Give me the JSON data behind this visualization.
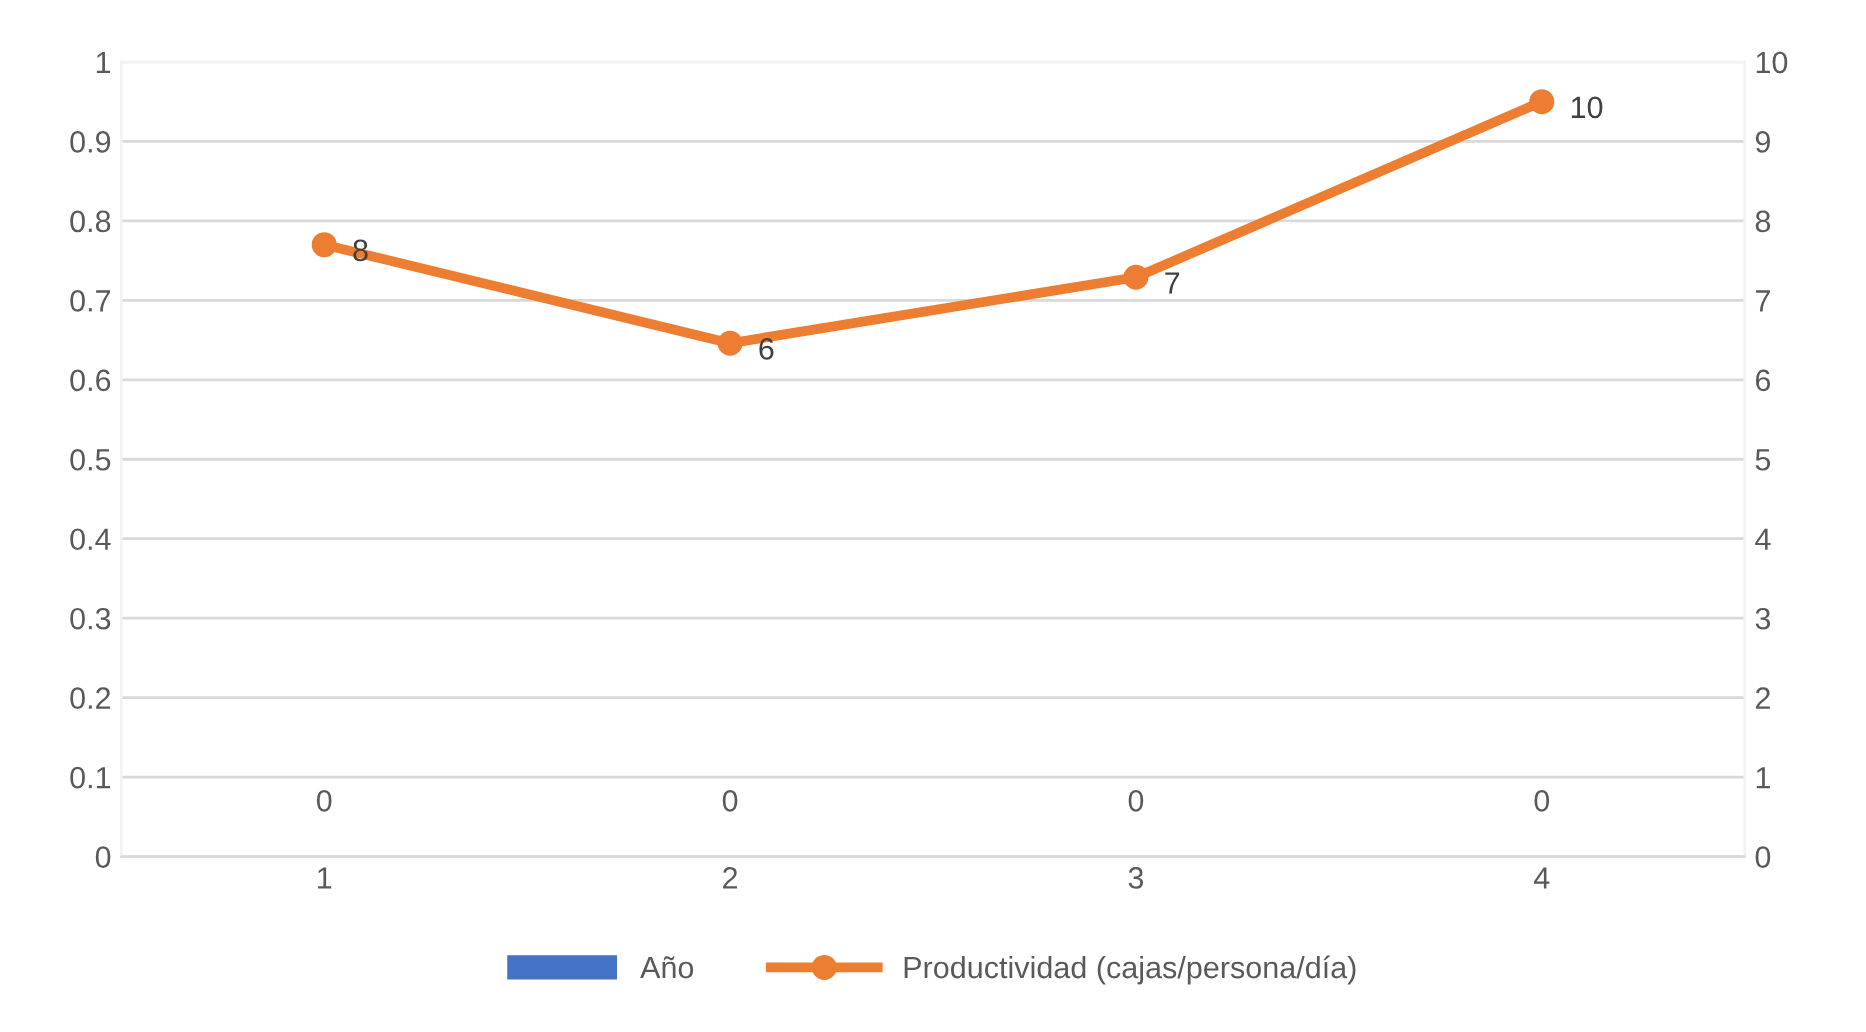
{
  "chart_data": {
    "type": "bar",
    "categories": [
      "1",
      "2",
      "3",
      "4"
    ],
    "series": [
      {
        "name": "Año",
        "color": "#4472c4",
        "values": [
          0,
          0,
          0,
          0
        ],
        "value_labels": [
          "0",
          "0",
          "0",
          "0"
        ]
      },
      {
        "name": "Productividad (cajas/persona/día)",
        "type": "line",
        "axis": "y2",
        "color": "#ed7d31",
        "values": [
          7.7,
          6.46,
          7.29,
          9.5
        ],
        "value_labels": [
          "8",
          "6",
          "7",
          "10"
        ]
      }
    ],
    "ylim": [
      0,
      1
    ],
    "yticks": [
      0,
      {
        "value": 0.1,
        "label": "0.1"
      },
      {
        "value": 0.2,
        "label": "0.2"
      },
      {
        "value": 0.3,
        "label": "0.3"
      },
      {
        "value": 0.4,
        "label": "0.4"
      },
      {
        "value": 0.5,
        "label": "0.5"
      },
      {
        "value": 0.6,
        "label": "0.6"
      },
      {
        "value": 0.7,
        "label": "0.7"
      },
      {
        "value": 0.8,
        "label": "0.8"
      },
      {
        "value": 0.9,
        "label": "0.9"
      },
      1
    ],
    "y2lim": [
      0,
      10
    ],
    "y2ticks": [
      0,
      1,
      2,
      3,
      4,
      5,
      6,
      7,
      8,
      9,
      10
    ],
    "grid": "y",
    "legend": "bottom",
    "marker": "circle",
    "line_style": "solid"
  }
}
